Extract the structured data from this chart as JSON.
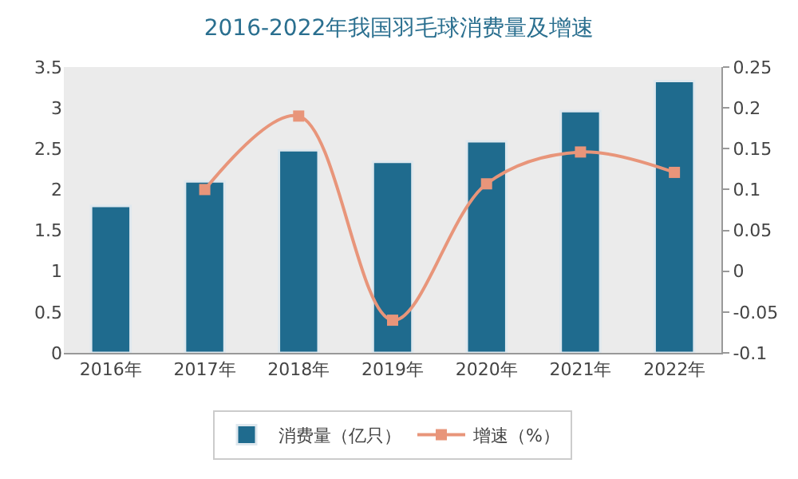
{
  "chart_data": {
    "type": "bar",
    "title": "2016-2022年我国羽毛球消费量及增速",
    "categories": [
      "2016年",
      "2017年",
      "2018年",
      "2019年",
      "2020年",
      "2021年",
      "2022年"
    ],
    "series": [
      {
        "name": "消费量（亿只）",
        "color": "#1f6b8e",
        "values": [
          1.8,
          2.1,
          2.48,
          2.34,
          2.59,
          2.96,
          3.33
        ]
      },
      {
        "name": "增速（%）",
        "type": "line",
        "axis": "y2",
        "color": "#e8957a",
        "marker": "square",
        "values": [
          null,
          0.1,
          0.19,
          -0.06,
          0.107,
          0.146,
          0.121
        ]
      }
    ],
    "ylim": [
      0,
      3.5
    ],
    "yticks": [
      0,
      0.5,
      1,
      1.5,
      2,
      2.5,
      3,
      3.5
    ],
    "y2lim": [
      -0.1,
      0.25
    ],
    "y2ticks": [
      -0.1,
      -0.05,
      0,
      0.05,
      0.1,
      0.15,
      0.2,
      0.25
    ],
    "grid": false,
    "legend": "bottom"
  }
}
